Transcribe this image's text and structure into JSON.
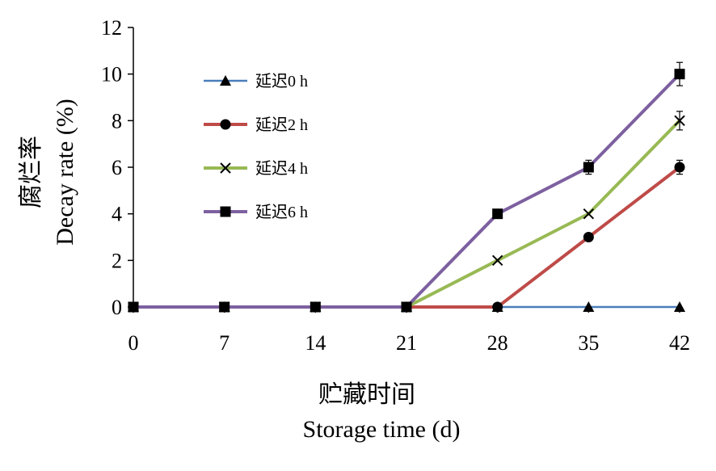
{
  "chart_data": {
    "type": "line",
    "xlabel_cn": "贮藏时间",
    "xlabel_en": "Storage time (d)",
    "ylabel_cn": "腐烂率",
    "ylabel_en": "Decay rate (%)",
    "x": [
      0,
      7,
      14,
      21,
      28,
      35,
      42
    ],
    "x_ticks": [
      "0",
      "7",
      "14",
      "21",
      "28",
      "35",
      "42"
    ],
    "ylim": [
      0,
      12
    ],
    "y_ticks": [
      "0",
      "2",
      "4",
      "6",
      "8",
      "10",
      "12"
    ],
    "legend_position": "upper-left inside plot",
    "series": [
      {
        "name": "延迟0 h",
        "color": "#4a7ebb",
        "marker": "triangle",
        "values": [
          0,
          0,
          0,
          0,
          0,
          0,
          0
        ],
        "errors": [
          0,
          0,
          0,
          0,
          0,
          0,
          0
        ]
      },
      {
        "name": "延迟2 h",
        "color": "#be4b48",
        "marker": "circle",
        "values": [
          0,
          0,
          0,
          0,
          0,
          3,
          6
        ],
        "errors": [
          0,
          0,
          0,
          0,
          0,
          0,
          0.3
        ]
      },
      {
        "name": "延迟4 h",
        "color": "#98b954",
        "marker": "x",
        "values": [
          0,
          0,
          0,
          0,
          2,
          4,
          8
        ],
        "errors": [
          0,
          0,
          0,
          0,
          0,
          0,
          0.4
        ]
      },
      {
        "name": "延迟6 h",
        "color": "#7d60a0",
        "marker": "square",
        "values": [
          0,
          0,
          0,
          0,
          4,
          6,
          10
        ],
        "errors": [
          0,
          0,
          0,
          0,
          0,
          0.3,
          0.5
        ]
      }
    ]
  }
}
